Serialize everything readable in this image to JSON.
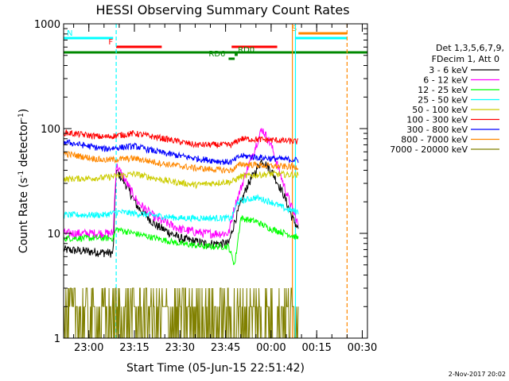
{
  "chart_data": {
    "type": "line",
    "title": "HESSI Observing Summary Count Rates",
    "xlabel": "Start Time (05-Jun-15 22:51:42)",
    "ylabel": "Count Rate (s",
    "ylabel_sup": "-1",
    "ylabel_mid": " detector",
    "ylabel_tail": ")",
    "yscale": "log",
    "ylim": [
      1,
      1000
    ],
    "y_ticks": [
      1,
      10,
      100,
      1000
    ],
    "y_tick_labels": [
      "1",
      "10",
      "100",
      "1000"
    ],
    "x_range": [
      "22:51:42",
      "00:31:42"
    ],
    "x_ticks": [
      "23:00",
      "23:15",
      "23:30",
      "23:45",
      "00:00",
      "00:15",
      "00:30"
    ],
    "timestamp": "2-Nov-2017 20:02",
    "legend_header": [
      "Det 1,3,5,6,7,9,",
      "FDecim 1, Att 0"
    ],
    "series": [
      {
        "name": "3 - 6 keV",
        "color": "#000000",
        "points": [
          [
            "22:51:42",
            7
          ],
          [
            "23:07",
            6.5
          ],
          [
            "23:08",
            6.5
          ],
          [
            "23:09",
            40
          ],
          [
            "23:12",
            30
          ],
          [
            "23:16",
            18
          ],
          [
            "23:22",
            12
          ],
          [
            "23:30",
            9
          ],
          [
            "23:38",
            8
          ],
          [
            "23:46",
            8
          ],
          [
            "23:48",
            13
          ],
          [
            "23:52",
            28
          ],
          [
            "23:57",
            50
          ],
          [
            "00:00",
            40
          ],
          [
            "00:04",
            24
          ],
          [
            "00:07",
            14
          ],
          [
            "00:09",
            11
          ]
        ]
      },
      {
        "name": "6 - 12 keV",
        "color": "#ff00ff",
        "points": [
          [
            "22:51:42",
            10
          ],
          [
            "23:07",
            10
          ],
          [
            "23:08",
            10
          ],
          [
            "23:09",
            45
          ],
          [
            "23:12",
            32
          ],
          [
            "23:16",
            20
          ],
          [
            "23:22",
            14
          ],
          [
            "23:30",
            11
          ],
          [
            "23:38",
            10
          ],
          [
            "23:46",
            10
          ],
          [
            "23:48",
            18
          ],
          [
            "23:52",
            40
          ],
          [
            "23:57",
            100
          ],
          [
            "00:00",
            70
          ],
          [
            "00:04",
            30
          ],
          [
            "00:07",
            17
          ],
          [
            "00:09",
            12
          ]
        ]
      },
      {
        "name": "12 - 25 keV",
        "color": "#00ff00",
        "points": [
          [
            "22:51:42",
            9
          ],
          [
            "23:08",
            9
          ],
          [
            "23:09",
            11
          ],
          [
            "23:15",
            10
          ],
          [
            "23:22",
            9
          ],
          [
            "23:30",
            8
          ],
          [
            "23:38",
            7.5
          ],
          [
            "23:46",
            7.5
          ],
          [
            "23:48",
            5
          ],
          [
            "23:50",
            14
          ],
          [
            "23:55",
            13
          ],
          [
            "00:00",
            11
          ],
          [
            "00:05",
            10
          ],
          [
            "00:09",
            9
          ]
        ]
      },
      {
        "name": "25 - 50 keV",
        "color": "#00ffff",
        "points": [
          [
            "22:51:42",
            15
          ],
          [
            "23:05",
            15
          ],
          [
            "23:10",
            16
          ],
          [
            "23:20",
            15
          ],
          [
            "23:30",
            14
          ],
          [
            "23:40",
            14
          ],
          [
            "23:47",
            14
          ],
          [
            "23:49",
            20
          ],
          [
            "23:55",
            22
          ],
          [
            "00:00",
            20
          ],
          [
            "00:05",
            17
          ],
          [
            "00:09",
            16
          ]
        ]
      },
      {
        "name": "50 - 100 keV",
        "color": "#cccc00",
        "points": [
          [
            "22:51:42",
            33
          ],
          [
            "23:05",
            34
          ],
          [
            "23:15",
            37
          ],
          [
            "23:25",
            32
          ],
          [
            "23:35",
            29
          ],
          [
            "23:45",
            31
          ],
          [
            "23:47",
            31
          ],
          [
            "23:50",
            35
          ],
          [
            "00:00",
            37
          ],
          [
            "00:09",
            36
          ]
        ]
      },
      {
        "name": "100 - 300 keV",
        "color": "#ff0000",
        "points": [
          [
            "22:51:42",
            92
          ],
          [
            "23:05",
            83
          ],
          [
            "23:15",
            90
          ],
          [
            "23:25",
            80
          ],
          [
            "23:35",
            70
          ],
          [
            "23:45",
            70
          ],
          [
            "23:47",
            70
          ],
          [
            "23:50",
            80
          ],
          [
            "00:00",
            78
          ],
          [
            "00:09",
            75
          ]
        ]
      },
      {
        "name": "300 - 800 keV",
        "color": "#0000ff",
        "points": [
          [
            "22:51:42",
            75
          ],
          [
            "23:05",
            64
          ],
          [
            "23:15",
            68
          ],
          [
            "23:25",
            58
          ],
          [
            "23:35",
            52
          ],
          [
            "23:45",
            48
          ],
          [
            "23:47",
            48
          ],
          [
            "23:50",
            55
          ],
          [
            "00:00",
            52
          ],
          [
            "00:09",
            50
          ]
        ]
      },
      {
        "name": "800 - 7000 keV",
        "color": "#ff8800",
        "points": [
          [
            "22:51:42",
            58
          ],
          [
            "23:05",
            50
          ],
          [
            "23:15",
            52
          ],
          [
            "23:25",
            46
          ],
          [
            "23:35",
            42
          ],
          [
            "23:45",
            40
          ],
          [
            "23:47",
            40
          ],
          [
            "23:50",
            46
          ],
          [
            "00:00",
            44
          ],
          [
            "00:09",
            43
          ]
        ]
      },
      {
        "name": "7000 - 20000 keV",
        "color": "#808000",
        "points": [
          [
            "22:51:42",
            2
          ],
          [
            "23:09",
            2
          ],
          [
            "23:10",
            2.5
          ],
          [
            "23:30",
            2
          ],
          [
            "23:40",
            2.5
          ],
          [
            "23:48",
            2
          ],
          [
            "00:00",
            2.5
          ],
          [
            "00:09",
            2
          ]
        ]
      }
    ],
    "attenuator_bars": [
      {
        "label": "N",
        "color": "#00ffff",
        "start": "22:51:42",
        "end": "23:08"
      },
      {
        "label": "",
        "color": "#00ffff",
        "start": "00:08",
        "end": "00:25"
      },
      {
        "label": "F",
        "color": "#ff0000",
        "start": "23:09",
        "end": "23:24"
      },
      {
        "label": "",
        "color": "#ff0000",
        "start": "23:47",
        "end": "00:02"
      },
      {
        "label": "S",
        "color": "#ff8800",
        "start": "00:09",
        "end": "00:25"
      },
      {
        "label": "RD0",
        "color": "#008800",
        "start": "23:48",
        "end": "23:49"
      },
      {
        "label": "RD6",
        "color": "#008800",
        "start": "23:46",
        "end": "23:48"
      }
    ],
    "vertical_markers": [
      {
        "time": "23:09",
        "color": "#00ffff",
        "style": "dashed"
      },
      {
        "time": "00:07",
        "color": "#ff8800",
        "style": "solid"
      },
      {
        "time": "00:08",
        "color": "#00ffff",
        "style": "solid"
      },
      {
        "time": "00:25",
        "color": "#ff8800",
        "style": "dashed"
      }
    ]
  }
}
